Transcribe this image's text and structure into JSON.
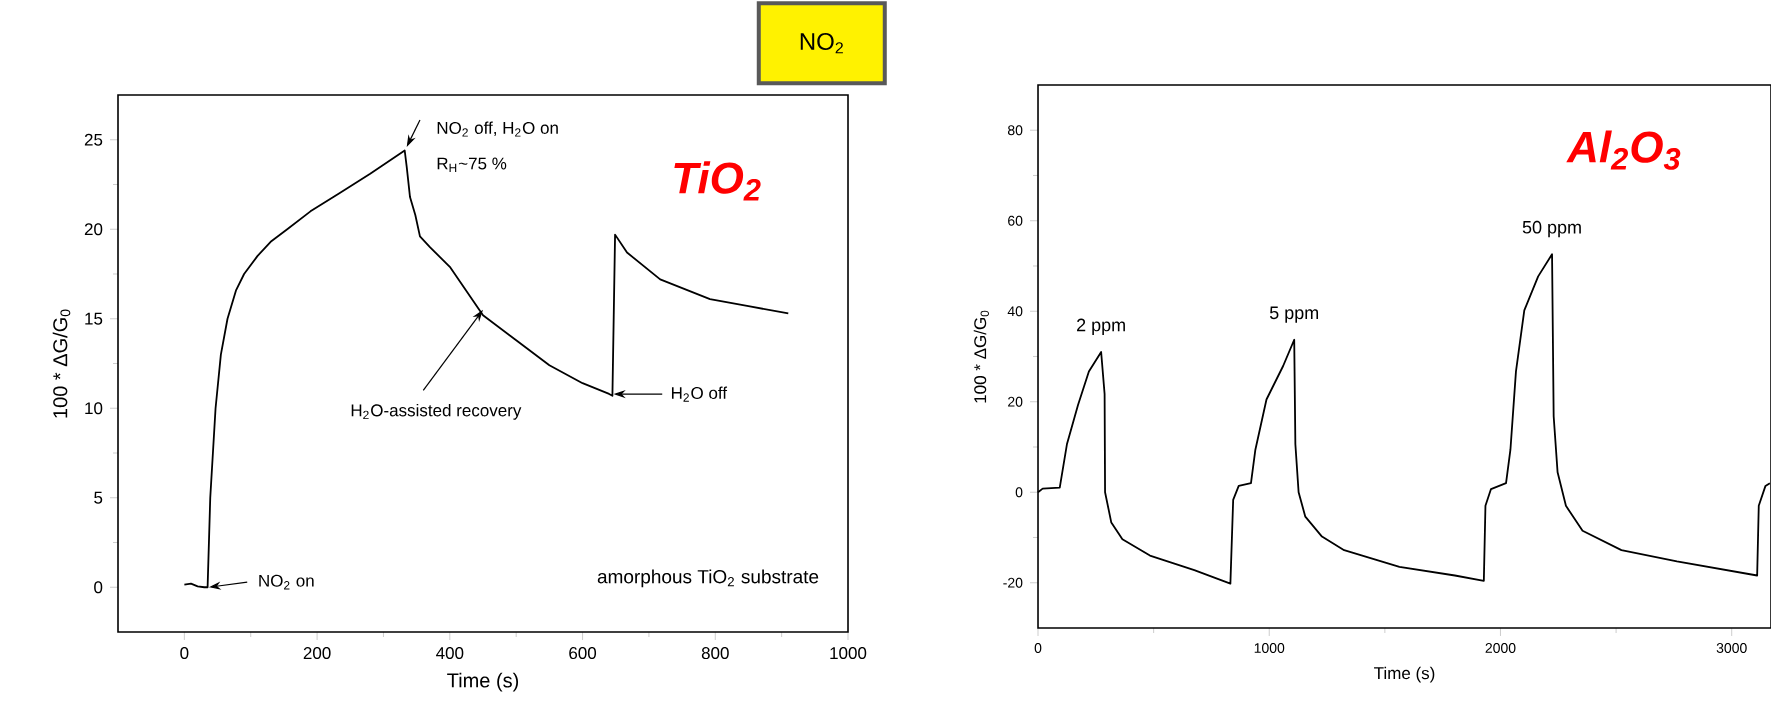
{
  "chart_data": [
    {
      "type": "line",
      "title": "TiO$_{2}$",
      "xlabel": "Time (s)",
      "ylabel": "100 * ΔG/G$_{0}$",
      "color": "#000000",
      "x": [
        0,
        10,
        20,
        30,
        35,
        39,
        47,
        55,
        65,
        78,
        90,
        110,
        130,
        155,
        190,
        233,
        280,
        332,
        335,
        340,
        348,
        355,
        370,
        400,
        450,
        500,
        550,
        600,
        640,
        645,
        649,
        667,
        717,
        792,
        850,
        910
      ],
      "values": [
        0.15,
        0.2,
        0.05,
        0,
        0,
        5,
        10,
        13,
        15,
        16.6,
        17.5,
        18.5,
        19.3,
        20,
        21,
        22,
        23.1,
        24.4,
        23.5,
        21.8,
        20.8,
        19.6,
        19,
        17.9,
        15.2,
        13.8,
        12.4,
        11.4,
        10.8,
        10.7,
        19.7,
        18.7,
        17.2,
        16.1,
        15.7,
        15.3
      ],
      "xlim": [
        -100,
        1000
      ],
      "ylim": [
        -2.5,
        27.5
      ],
      "xticks": [
        0,
        200,
        400,
        600,
        800,
        1000
      ],
      "yticks": [
        0,
        5,
        10,
        15,
        20,
        25
      ],
      "annotations": [
        "NO$_{2}$ on",
        {
          "text": "NO$_{2}$ off, H$_{2}$O on",
          "x": 332,
          "y": 24.4
        },
        {
          "text": "R$_{H}$~75 %",
          "x": 332,
          "y": 24.4
        },
        {
          "text": "H$_{2}$O-assisted recovery",
          "x": 450,
          "y": 15.5
        },
        "H$_{2}$O off",
        "amorphous TiO$_{2}$ substrate"
      ]
    },
    {
      "type": "line",
      "title": "Al$_{2}$O$_{3}$",
      "xlabel": "Time (s)",
      "ylabel": "100 * ΔG/G$_{0}$",
      "color": "#000000",
      "x": [
        0,
        20,
        94,
        125,
        173,
        220,
        273,
        288,
        290,
        317,
        365,
        484,
        676,
        832,
        844,
        868,
        921,
        940,
        988,
        1060,
        1108,
        1113,
        1127,
        1156,
        1228,
        1324,
        1563,
        1803,
        1928,
        1935,
        1959,
        2024,
        2043,
        2067,
        2103,
        2163,
        2223,
        2230,
        2247,
        2283,
        2355,
        2523,
        2763,
        3110,
        3117,
        3146,
        3165
      ],
      "values": [
        0,
        0.8,
        1,
        10.6,
        19.3,
        26.7,
        31,
        21.7,
        0,
        -6.7,
        -10.4,
        -14,
        -17.2,
        -20.2,
        -1.7,
        1.4,
        2,
        9.4,
        20.5,
        27.9,
        33.7,
        10.6,
        0,
        -5.4,
        -9.8,
        -12.8,
        -16.5,
        -18.4,
        -19.6,
        -3,
        0.7,
        2,
        9.4,
        26.7,
        40.2,
        47.7,
        52.6,
        16.8,
        4.4,
        -3,
        -8.5,
        -12.8,
        -15.3,
        -18.4,
        -3,
        1.4,
        2
      ],
      "xlim": [
        0,
        3170
      ],
      "ylim": [
        -30,
        90
      ],
      "xticks": [
        0,
        1000,
        2000,
        3000
      ],
      "yticks": [
        -20,
        0,
        20,
        40,
        60,
        80
      ],
      "annotations": [
        {
          "text": "2 ppm",
          "x": 273,
          "y": 31
        },
        {
          "text": "5 ppm",
          "x": 1108,
          "y": 33.7
        },
        {
          "text": "50 ppm",
          "x": 2223,
          "y": 52.6
        },
        "NO$_{2}$"
      ]
    }
  ]
}
